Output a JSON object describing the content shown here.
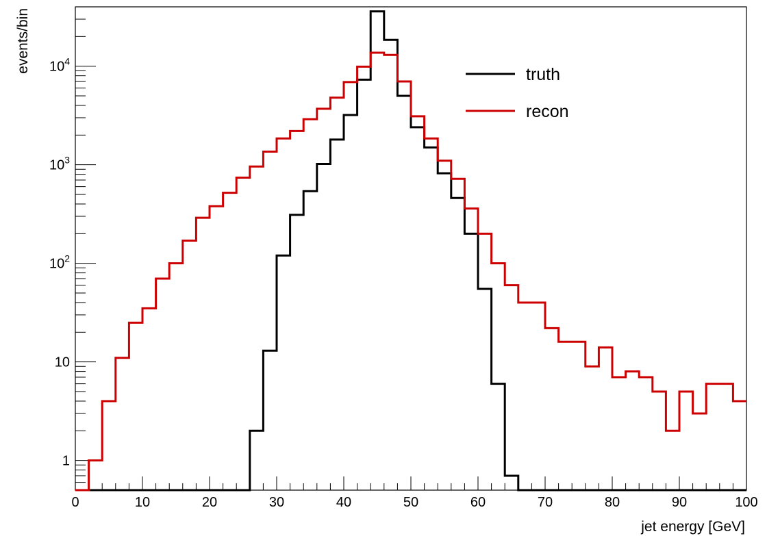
{
  "chart_data": {
    "type": "histogram",
    "xlabel": "jet energy [GeV]",
    "ylabel": "events/bin",
    "xlim": [
      0,
      100
    ],
    "ylim": [
      0.5,
      40000
    ],
    "yscale": "log",
    "bin_width": 2,
    "grid": false,
    "legend_position": "top-right",
    "x_ticks": [
      0,
      10,
      20,
      30,
      40,
      50,
      60,
      70,
      80,
      90,
      100
    ],
    "x_tick_labels": [
      "0",
      "10",
      "20",
      "30",
      "40",
      "50",
      "60",
      "70",
      "80",
      "90",
      "100"
    ],
    "y_ticks": [
      1,
      10,
      100,
      1000,
      10000
    ],
    "y_tick_labels": [
      "1",
      "10",
      "10^2",
      "10^3",
      "10^4"
    ],
    "bin_edges": [
      0,
      2,
      4,
      6,
      8,
      10,
      12,
      14,
      16,
      18,
      20,
      22,
      24,
      26,
      28,
      30,
      32,
      34,
      36,
      38,
      40,
      42,
      44,
      46,
      48,
      50,
      52,
      54,
      56,
      58,
      60,
      62,
      64,
      66,
      68,
      70,
      72,
      74,
      76,
      78,
      80,
      82,
      84,
      86,
      88,
      90,
      92,
      94,
      96,
      98,
      100
    ],
    "series": [
      {
        "name": "truth",
        "color": "#000000",
        "values": [
          0,
          0,
          0,
          0,
          0,
          0,
          0,
          0,
          0,
          0,
          0,
          0,
          0,
          2,
          13,
          120,
          310,
          540,
          1020,
          1800,
          3200,
          7300,
          36000,
          18500,
          5000,
          2400,
          1500,
          820,
          460,
          200,
          55,
          6,
          0.7,
          0,
          0,
          0,
          0,
          0,
          0,
          0,
          0,
          0,
          0,
          0,
          0,
          0,
          0,
          0,
          0,
          0
        ]
      },
      {
        "name": "recon",
        "color": "#cc0000",
        "values": [
          0,
          1,
          4,
          11,
          25,
          35,
          70,
          100,
          170,
          290,
          380,
          520,
          740,
          960,
          1360,
          1850,
          2200,
          2900,
          3700,
          4800,
          6900,
          9900,
          13700,
          13000,
          7000,
          3100,
          1850,
          1100,
          720,
          360,
          200,
          100,
          60,
          40,
          40,
          22,
          16,
          16,
          9,
          14,
          7,
          8,
          7,
          5,
          2,
          5,
          3,
          6,
          6,
          4
        ]
      }
    ]
  }
}
